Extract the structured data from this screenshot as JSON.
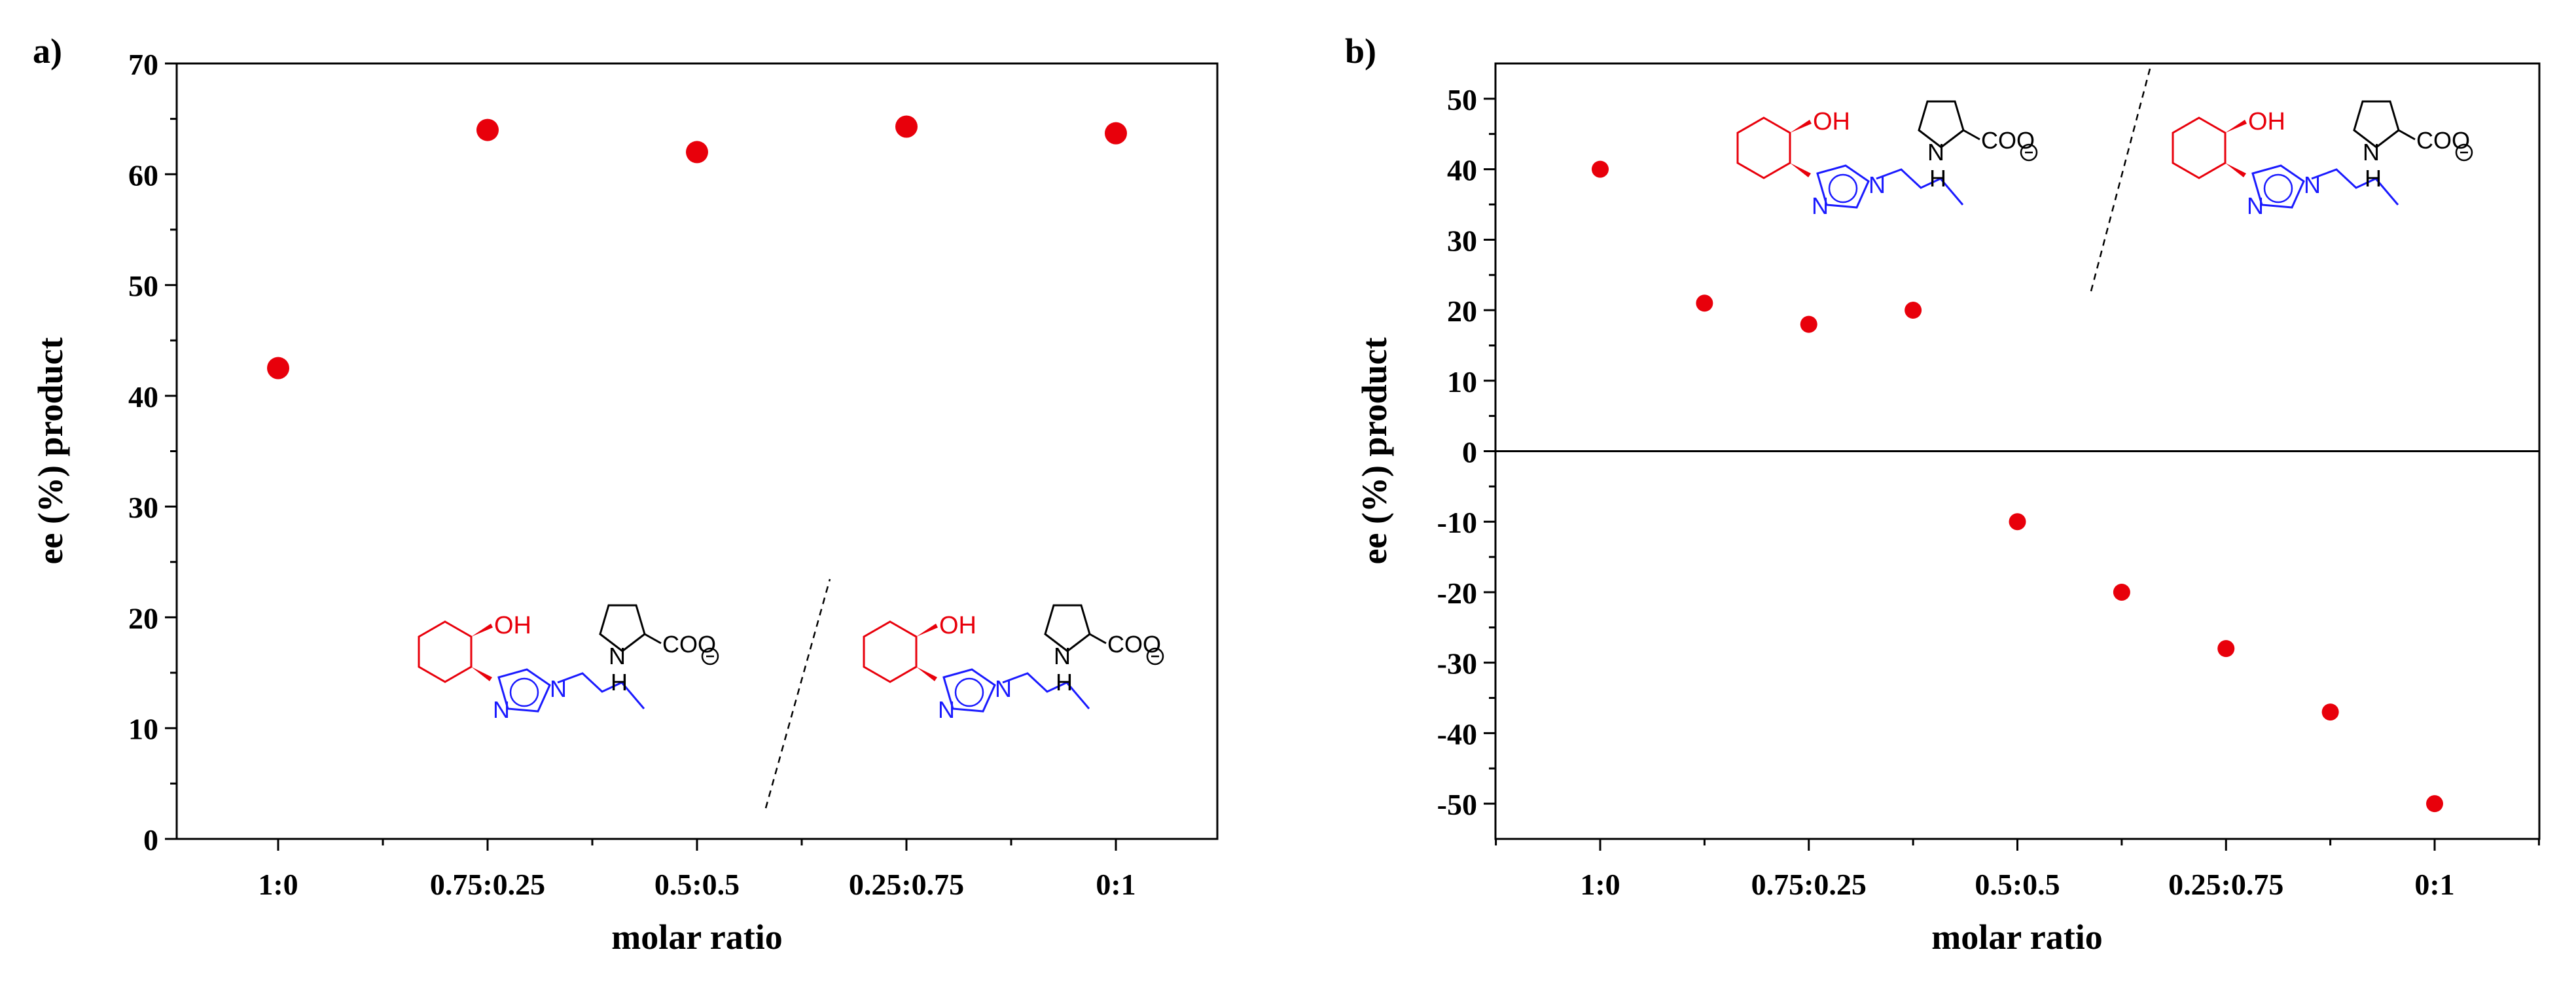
{
  "chart_data": [
    {
      "panel_label": "a)",
      "type": "scatter",
      "categories": [
        "1:0",
        "0.75:0.25",
        "0.5:0.5",
        "0.25:0.75",
        "0:1"
      ],
      "x": [
        0,
        1,
        2,
        3,
        4
      ],
      "values": [
        42.5,
        64.0,
        62.0,
        64.3,
        63.7
      ],
      "xlabel": "molar ratio",
      "ylabel": "ee (%) product",
      "ylim": [
        0,
        70
      ],
      "yticks": [
        0,
        10,
        20,
        30,
        40,
        50,
        60,
        70
      ],
      "marker_color": "#e8000b",
      "structure": {
        "oh": "OH",
        "nh": "N",
        "h": "H",
        "coo": "COO",
        "n": "N"
      }
    },
    {
      "panel_label": "b)",
      "type": "scatter",
      "categories": [
        "1:0",
        "0.75:0.25",
        "0.5:0.5",
        "0.25:0.75",
        "0:1"
      ],
      "x": [
        0,
        0.5,
        1,
        1.5,
        2,
        2.5,
        3,
        3.5,
        4
      ],
      "values": [
        40,
        21,
        18,
        20,
        -10,
        -20,
        -28,
        -37,
        -50
      ],
      "xlabel": "molar ratio",
      "ylabel": "ee (%) product",
      "ylim": [
        -55,
        55
      ],
      "yticks": [
        -50,
        -40,
        -30,
        -20,
        -10,
        0,
        10,
        20,
        30,
        40,
        50
      ],
      "marker_color": "#e8000b",
      "structure": {
        "oh": "OH",
        "nh": "N",
        "h": "H",
        "coo": "COO",
        "n": "N"
      }
    }
  ]
}
